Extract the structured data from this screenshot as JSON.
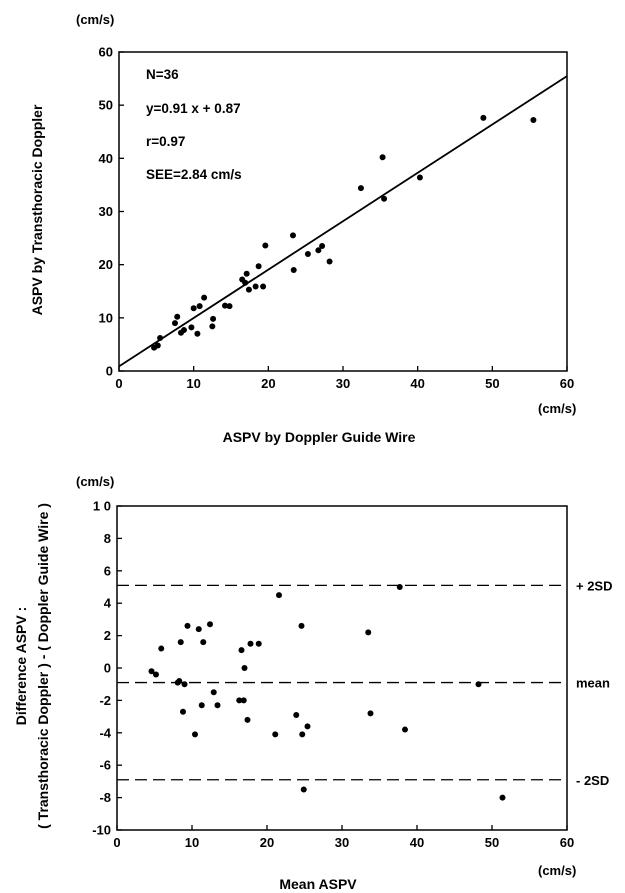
{
  "chart_data": [
    {
      "type": "scatter",
      "stats": {
        "n": "N=36",
        "equation": "y=0.91 x + 0.87",
        "r": "r=0.97",
        "see": "SEE=2.84 cm/s"
      },
      "xlabel": "ASPV by Doppler Guide Wire",
      "ylabel": "ASPV by Transthoracic Doppler",
      "x_unit": "(cm/s)",
      "y_unit": "(cm/s)",
      "xlim": [
        0,
        60
      ],
      "ylim": [
        0,
        60
      ],
      "x_ticks": [
        0,
        10,
        20,
        30,
        40,
        50,
        60
      ],
      "y_ticks": [
        0,
        10,
        20,
        30,
        40,
        50,
        60
      ],
      "regression": {
        "slope": 0.91,
        "intercept": 0.87
      },
      "points": [
        {
          "x": 4.7,
          "y": 4.4
        },
        {
          "x": 5.2,
          "y": 4.8
        },
        {
          "x": 5.5,
          "y": 6.2
        },
        {
          "x": 7.5,
          "y": 9.0
        },
        {
          "x": 7.8,
          "y": 10.2
        },
        {
          "x": 8.3,
          "y": 7.2
        },
        {
          "x": 8.7,
          "y": 7.7
        },
        {
          "x": 9.7,
          "y": 8.2
        },
        {
          "x": 10.0,
          "y": 11.8
        },
        {
          "x": 10.5,
          "y": 7.0
        },
        {
          "x": 10.8,
          "y": 12.2
        },
        {
          "x": 11.4,
          "y": 13.8
        },
        {
          "x": 12.5,
          "y": 8.4
        },
        {
          "x": 12.6,
          "y": 9.8
        },
        {
          "x": 14.2,
          "y": 12.3
        },
        {
          "x": 14.8,
          "y": 12.2
        },
        {
          "x": 16.5,
          "y": 17.2
        },
        {
          "x": 16.9,
          "y": 16.6
        },
        {
          "x": 17.1,
          "y": 18.3
        },
        {
          "x": 17.4,
          "y": 15.3
        },
        {
          "x": 18.3,
          "y": 15.9
        },
        {
          "x": 18.7,
          "y": 19.7
        },
        {
          "x": 19.3,
          "y": 15.9
        },
        {
          "x": 19.6,
          "y": 23.6
        },
        {
          "x": 23.3,
          "y": 25.5
        },
        {
          "x": 23.4,
          "y": 19.0
        },
        {
          "x": 25.3,
          "y": 22.0
        },
        {
          "x": 26.7,
          "y": 22.7
        },
        {
          "x": 27.2,
          "y": 23.5
        },
        {
          "x": 28.2,
          "y": 20.6
        },
        {
          "x": 32.4,
          "y": 34.4
        },
        {
          "x": 35.3,
          "y": 40.2
        },
        {
          "x": 35.5,
          "y": 32.4
        },
        {
          "x": 40.3,
          "y": 36.4
        },
        {
          "x": 48.8,
          "y": 47.6
        },
        {
          "x": 55.5,
          "y": 47.2
        }
      ]
    },
    {
      "type": "scatter",
      "xlabel": "Mean ASPV",
      "ylabel_line1": "Difference ASPV :",
      "ylabel_line2": "( Transthoracic Doppler ) - ( Doppler Guide Wire )",
      "x_unit": "(cm/s)",
      "y_unit": "(cm/s)",
      "xlim": [
        0,
        60
      ],
      "ylim": [
        -10,
        10
      ],
      "x_ticks": [
        0,
        10,
        20,
        30,
        40,
        50,
        60
      ],
      "y_ticks": [
        -10,
        -8,
        -6,
        -4,
        -2,
        0,
        2,
        4,
        6,
        8,
        10
      ],
      "y_tick_labels": [
        "-10",
        "-8",
        "-6",
        "-4",
        "-2",
        "0",
        "2",
        "4",
        "6",
        "8",
        "1 0"
      ],
      "reference_lines": [
        {
          "label": "+ 2SD",
          "y": 5.1
        },
        {
          "label": "mean",
          "y": -0.9
        },
        {
          "label": "- 2SD",
          "y": -6.9
        }
      ],
      "points": [
        {
          "x": 4.6,
          "y": -0.2
        },
        {
          "x": 5.2,
          "y": -0.4
        },
        {
          "x": 5.9,
          "y": 1.2
        },
        {
          "x": 8.1,
          "y": -0.9
        },
        {
          "x": 8.3,
          "y": -0.8
        },
        {
          "x": 8.5,
          "y": 1.6
        },
        {
          "x": 8.8,
          "y": -2.7
        },
        {
          "x": 9.0,
          "y": -1.0
        },
        {
          "x": 9.4,
          "y": 2.6
        },
        {
          "x": 10.4,
          "y": -4.1
        },
        {
          "x": 10.9,
          "y": 2.4
        },
        {
          "x": 11.3,
          "y": -2.3
        },
        {
          "x": 11.5,
          "y": 1.6
        },
        {
          "x": 12.4,
          "y": 2.7
        },
        {
          "x": 12.9,
          "y": -1.5
        },
        {
          "x": 13.4,
          "y": -2.3
        },
        {
          "x": 16.3,
          "y": -2.0
        },
        {
          "x": 16.6,
          "y": 1.1
        },
        {
          "x": 16.9,
          "y": -2.0
        },
        {
          "x": 17.0,
          "y": 0.0
        },
        {
          "x": 17.4,
          "y": -3.2
        },
        {
          "x": 17.8,
          "y": 1.5
        },
        {
          "x": 18.9,
          "y": 1.5
        },
        {
          "x": 21.1,
          "y": -4.1
        },
        {
          "x": 21.6,
          "y": 4.5
        },
        {
          "x": 23.9,
          "y": -2.9
        },
        {
          "x": 24.6,
          "y": 2.6
        },
        {
          "x": 24.7,
          "y": -4.1
        },
        {
          "x": 24.9,
          "y": -7.5
        },
        {
          "x": 25.4,
          "y": -3.6
        },
        {
          "x": 33.5,
          "y": 2.2
        },
        {
          "x": 33.8,
          "y": -2.8
        },
        {
          "x": 37.7,
          "y": 5.0
        },
        {
          "x": 38.4,
          "y": -3.8
        },
        {
          "x": 48.2,
          "y": -1.0
        },
        {
          "x": 51.4,
          "y": -8.0
        }
      ]
    }
  ]
}
